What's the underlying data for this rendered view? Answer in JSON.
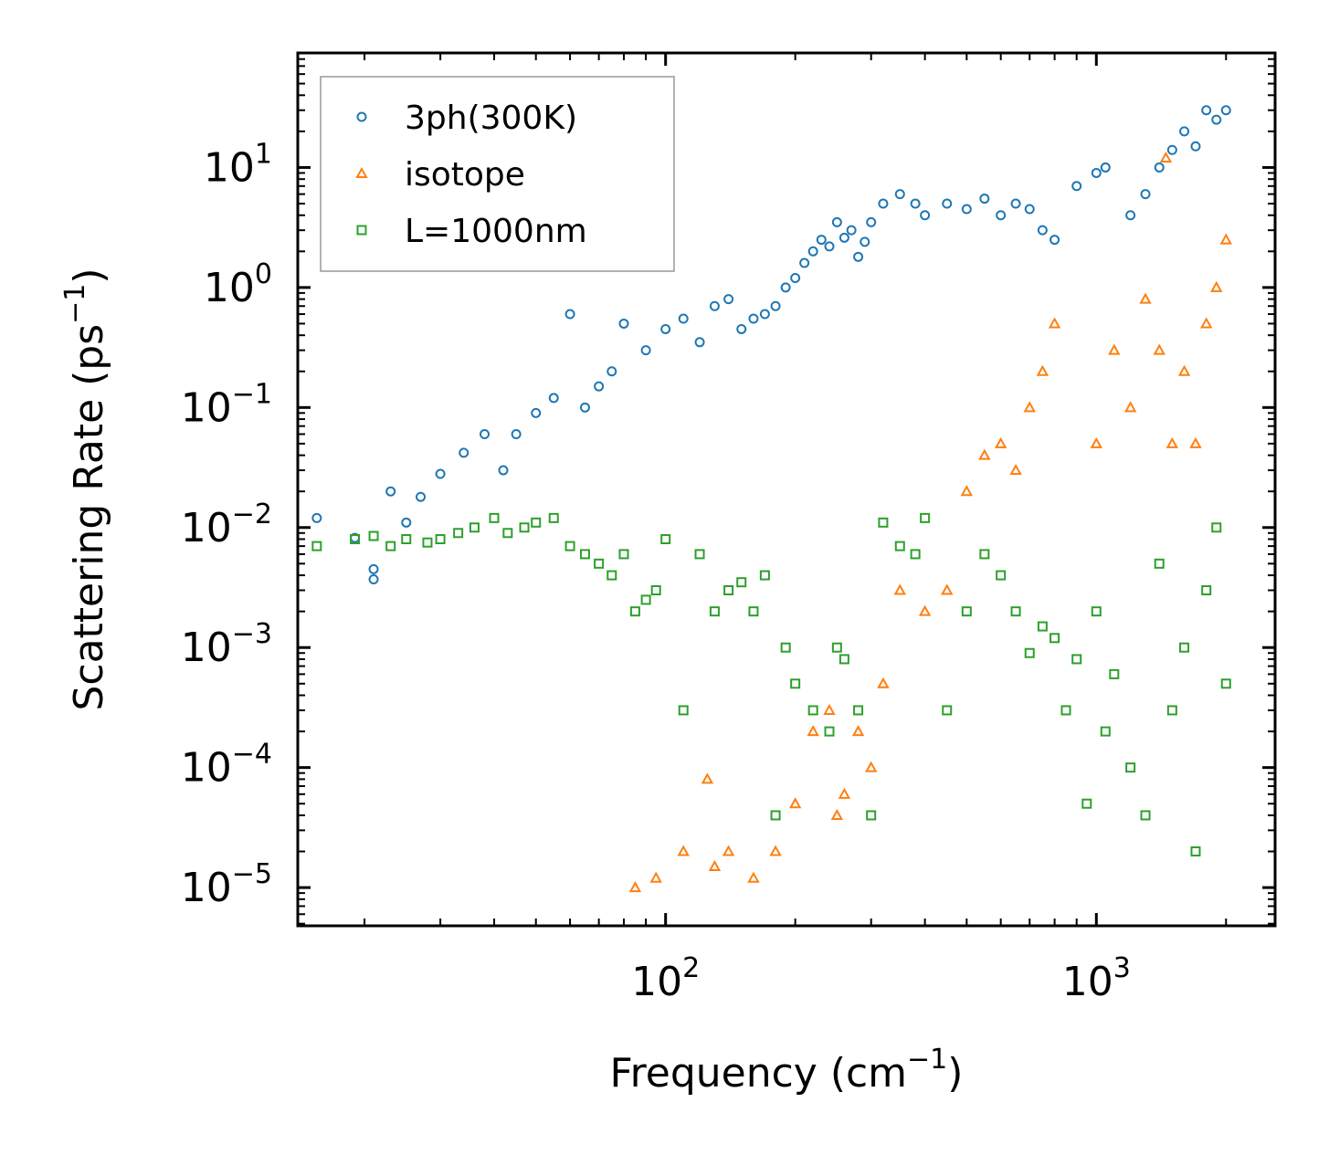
{
  "chart_data": {
    "type": "scatter",
    "xscale": "log",
    "yscale": "log",
    "xlabel": {
      "base": "Frequency (cm",
      "sup": "−1",
      "tail": ")"
    },
    "ylabel": {
      "base": "Scattering Rate (ps",
      "sup": "−1",
      "tail": ")"
    },
    "xlim": [
      14,
      2600
    ],
    "ylim": [
      4.8e-06,
      90
    ],
    "xticks": [
      {
        "value": 100,
        "base": "10",
        "exp": "2"
      },
      {
        "value": 1000,
        "base": "10",
        "exp": "3"
      }
    ],
    "yticks": [
      {
        "value": 10,
        "base": "10",
        "exp": "1"
      },
      {
        "value": 1,
        "base": "10",
        "exp": "0"
      },
      {
        "value": 0.1,
        "base": "10",
        "exp": "−1"
      },
      {
        "value": 0.01,
        "base": "10",
        "exp": "−2"
      },
      {
        "value": 0.001,
        "base": "10",
        "exp": "−3"
      },
      {
        "value": 0.0001,
        "base": "10",
        "exp": "−4"
      },
      {
        "value": 1e-05,
        "base": "10",
        "exp": "−5"
      }
    ],
    "legend_position": "top-left",
    "series": [
      {
        "name": "3ph(300K)",
        "marker": "circle",
        "color": "#1f77b4",
        "x": [
          15.5,
          19,
          21,
          21,
          23,
          25,
          27,
          30,
          34,
          38,
          42,
          45,
          50,
          55,
          60,
          65,
          70,
          75,
          80,
          90,
          100,
          110,
          120,
          130,
          140,
          150,
          160,
          170,
          180,
          190,
          200,
          210,
          220,
          230,
          240,
          250,
          260,
          270,
          280,
          290,
          300,
          320,
          350,
          380,
          400,
          450,
          500,
          550,
          600,
          650,
          700,
          750,
          800,
          900,
          1000,
          1050,
          1200,
          1300,
          1400,
          1500,
          1600,
          1700,
          1800,
          1900,
          2000
        ],
        "y": [
          0.012,
          0.0082,
          0.0037,
          0.0045,
          0.02,
          0.011,
          0.018,
          0.028,
          0.042,
          0.06,
          0.03,
          0.06,
          0.09,
          0.12,
          0.6,
          0.1,
          0.15,
          0.2,
          0.5,
          0.3,
          0.45,
          0.55,
          0.35,
          0.7,
          0.8,
          0.45,
          0.55,
          0.6,
          0.7,
          1.0,
          1.2,
          1.6,
          2.0,
          2.5,
          2.2,
          3.5,
          2.6,
          3.0,
          1.8,
          2.4,
          3.5,
          5.0,
          6.0,
          5.0,
          4.0,
          5.0,
          4.5,
          5.5,
          4.0,
          5.0,
          4.5,
          3.0,
          2.5,
          7.0,
          9.0,
          10.0,
          4.0,
          6.0,
          10.0,
          14.0,
          20.0,
          15.0,
          30.0,
          25.0,
          30.0
        ]
      },
      {
        "name": "isotope",
        "marker": "triangle",
        "color": "#ff7f0e",
        "x": [
          85,
          95,
          110,
          125,
          130,
          140,
          160,
          180,
          200,
          220,
          240,
          250,
          260,
          280,
          300,
          320,
          350,
          400,
          450,
          500,
          550,
          600,
          650,
          700,
          750,
          800,
          1000,
          1100,
          1200,
          1300,
          1400,
          1450,
          1500,
          1600,
          1700,
          1800,
          1900,
          2000
        ],
        "y": [
          1e-05,
          1.2e-05,
          2e-05,
          8e-05,
          1.5e-05,
          2e-05,
          1.2e-05,
          2e-05,
          5e-05,
          0.0002,
          0.0003,
          4e-05,
          6e-05,
          0.0002,
          0.0001,
          0.0005,
          0.003,
          0.002,
          0.003,
          0.02,
          0.04,
          0.05,
          0.03,
          0.1,
          0.2,
          0.5,
          0.05,
          0.3,
          0.1,
          0.8,
          0.3,
          12.0,
          0.05,
          0.2,
          0.05,
          0.5,
          1.0,
          2.5
        ]
      },
      {
        "name": "L=1000nm",
        "marker": "square",
        "color": "#2ca02c",
        "x": [
          15.5,
          19,
          21,
          23,
          25,
          28,
          30,
          33,
          36,
          40,
          43,
          47,
          50,
          55,
          60,
          65,
          70,
          75,
          80,
          85,
          90,
          95,
          100,
          110,
          120,
          130,
          140,
          150,
          160,
          170,
          180,
          190,
          200,
          220,
          240,
          250,
          260,
          280,
          300,
          320,
          350,
          380,
          400,
          450,
          500,
          550,
          600,
          650,
          700,
          750,
          800,
          850,
          900,
          950,
          1000,
          1050,
          1100,
          1200,
          1300,
          1400,
          1500,
          1600,
          1700,
          1800,
          1900,
          2000
        ],
        "y": [
          0.007,
          0.008,
          0.0085,
          0.007,
          0.008,
          0.0075,
          0.008,
          0.009,
          0.01,
          0.012,
          0.009,
          0.01,
          0.011,
          0.012,
          0.007,
          0.006,
          0.005,
          0.004,
          0.006,
          0.002,
          0.0025,
          0.003,
          0.008,
          0.0003,
          0.006,
          0.002,
          0.003,
          0.0035,
          0.002,
          0.004,
          4e-05,
          0.001,
          0.0005,
          0.0003,
          0.0002,
          0.001,
          0.0008,
          0.0003,
          4e-05,
          0.011,
          0.007,
          0.006,
          0.012,
          0.0003,
          0.002,
          0.006,
          0.004,
          0.002,
          0.0009,
          0.0015,
          0.0012,
          0.0003,
          0.0008,
          5e-05,
          0.002,
          0.0002,
          0.0006,
          0.0001,
          4e-05,
          0.005,
          0.0003,
          0.001,
          2e-05,
          0.003,
          0.01,
          0.0005
        ]
      }
    ]
  }
}
